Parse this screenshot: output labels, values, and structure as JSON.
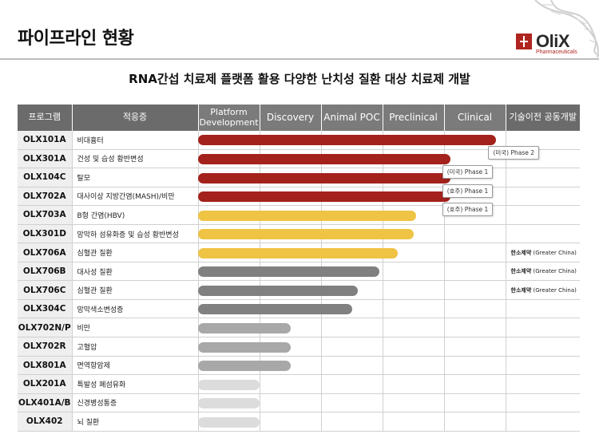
{
  "page_title": "파이프라인 현황",
  "subtitle": "RNA간섭 치료제 플랫폼 활용 다양한 난치성 질환 대상 치료제 개발",
  "logo": {
    "text": "OliX",
    "sub": "Pharmaceuticals",
    "color": "#b0241f"
  },
  "header": {
    "program": "프로그램",
    "indication": "적응증",
    "stages": [
      "Platform Development",
      "Discovery",
      "Animal POC",
      "Preclinical",
      "Clinical"
    ],
    "partner": "기술이전 공동개발"
  },
  "stage_names": [
    "Platform Development",
    "Discovery",
    "Animal POC",
    "Preclinical",
    "Clinical"
  ],
  "rows": [
    {
      "program": "OLX101A",
      "indication": "비대흉터",
      "progress": 0.97,
      "color": "red",
      "partner": "",
      "partner_region": ""
    },
    {
      "program": "OLX301A",
      "indication": "건성 및 습성 황반변성",
      "progress": 0.82,
      "color": "red",
      "partner": "",
      "partner_region": ""
    },
    {
      "program": "OLX104C",
      "indication": "탈모",
      "progress": 0.82,
      "color": "red",
      "partner": "",
      "partner_region": ""
    },
    {
      "program": "OLX702A",
      "indication": "대사이상 지방간염(MASH)/비만",
      "progress": 0.82,
      "color": "red",
      "partner": "",
      "partner_region": ""
    },
    {
      "program": "OLX703A",
      "indication": "B형 간염(HBV)",
      "progress": 0.71,
      "color": "yellow",
      "partner": "",
      "partner_region": ""
    },
    {
      "program": "OLX301D",
      "indication": "망막하 섬유화증 및 습성 황반변성",
      "progress": 0.7,
      "color": "yellow",
      "partner": "",
      "partner_region": ""
    },
    {
      "program": "OLX706A",
      "indication": "심혈관 질환",
      "progress": 0.65,
      "color": "yellow",
      "partner": "한소제약",
      "partner_region": "(Greater China)"
    },
    {
      "program": "OLX706B",
      "indication": "대사성 질환",
      "progress": 0.59,
      "color": "dgray",
      "partner": "한소제약",
      "partner_region": "(Greater China)"
    },
    {
      "program": "OLX706C",
      "indication": "심혈관 질환",
      "progress": 0.52,
      "color": "dgray",
      "partner": "한소제약",
      "partner_region": "(Greater China)"
    },
    {
      "program": "OLX304C",
      "indication": "망막색소변성증",
      "progress": 0.5,
      "color": "dgray",
      "partner": "",
      "partner_region": ""
    },
    {
      "program": "OLX702N/P",
      "indication": "비만",
      "progress": 0.3,
      "color": "mgray",
      "partner": "",
      "partner_region": ""
    },
    {
      "program": "OLX702R",
      "indication": "고혈압",
      "progress": 0.3,
      "color": "mgray",
      "partner": "",
      "partner_region": ""
    },
    {
      "program": "OLX801A",
      "indication": "면역항암제",
      "progress": 0.3,
      "color": "mgray",
      "partner": "",
      "partner_region": ""
    },
    {
      "program": "OLX201A",
      "indication": "특발성 폐섬유화",
      "progress": 0.2,
      "color": "lgray",
      "partner": "",
      "partner_region": ""
    },
    {
      "program": "OLX401A/B",
      "indication": "신경병성통증",
      "progress": 0.2,
      "color": "lgray",
      "partner": "",
      "partner_region": ""
    },
    {
      "program": "OLX402",
      "indication": "뇌 질환",
      "progress": 0.2,
      "color": "lgray",
      "partner": "",
      "partner_region": ""
    }
  ],
  "callouts": [
    {
      "row": 0,
      "text": "(미국) Phase 2"
    },
    {
      "row": 1,
      "text": "(미국) Phase 1"
    },
    {
      "row": 2,
      "text": "(호주) Phase 1"
    },
    {
      "row": 3,
      "text": "(호주) Phase 1"
    }
  ]
}
